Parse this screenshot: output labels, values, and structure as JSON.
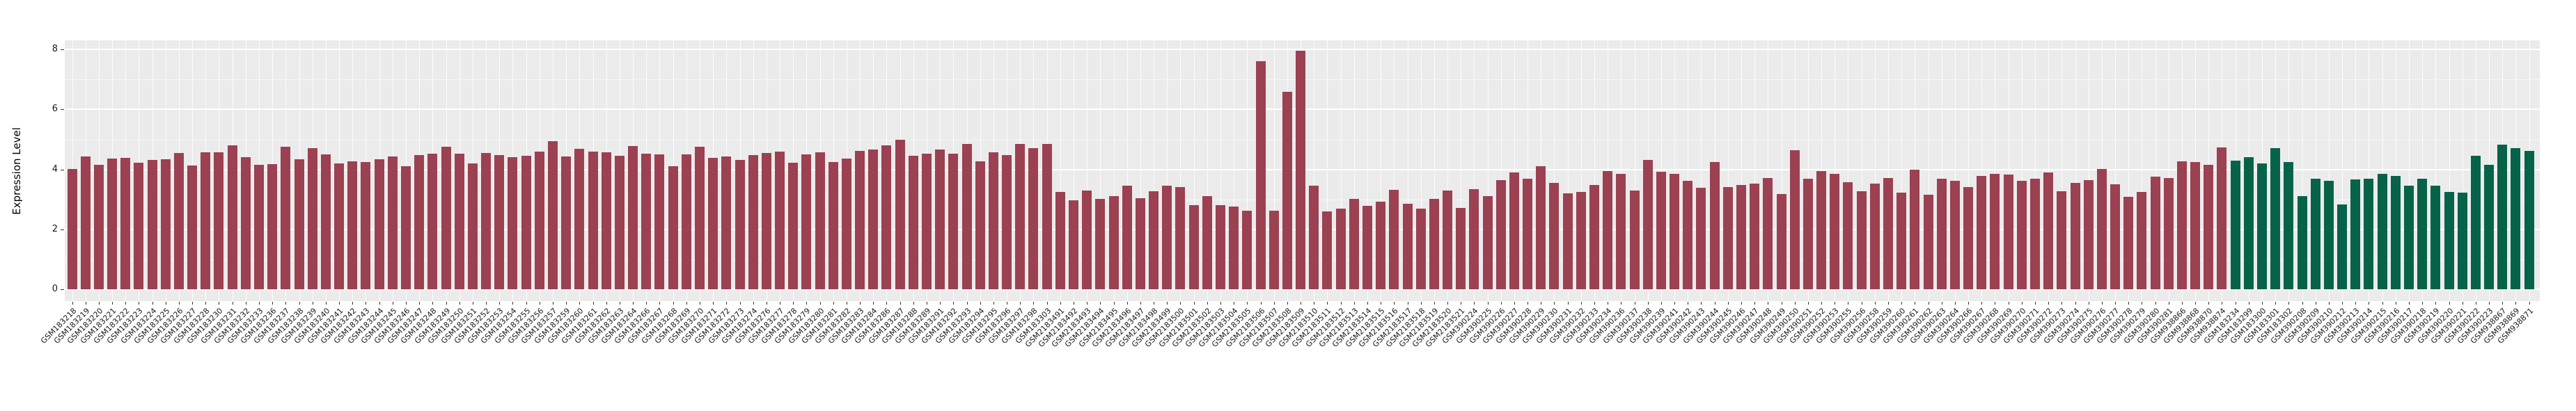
{
  "chart_data": {
    "type": "bar",
    "title": "",
    "xlabel": "",
    "ylabel": "Expression Level",
    "ylim": [
      0,
      8.3
    ],
    "yticks": [
      "0",
      "2",
      "4",
      "6",
      "8"
    ],
    "grid": "on",
    "legend": "none",
    "panel_background": "#EBEBEB",
    "gridline_color": "#FFFFFF",
    "series": [
      {
        "name": "group-red",
        "color": "#9B4152",
        "points": [
          [
            "GSM183218",
            4.02
          ],
          [
            "GSM183219",
            4.43
          ],
          [
            "GSM183220",
            4.15
          ],
          [
            "GSM183221",
            4.36
          ],
          [
            "GSM183222",
            4.39
          ],
          [
            "GSM183223",
            4.22
          ],
          [
            "GSM183224",
            4.32
          ],
          [
            "GSM183225",
            4.35
          ],
          [
            "GSM183226",
            4.55
          ],
          [
            "GSM183227",
            4.12
          ],
          [
            "GSM183228",
            4.56
          ],
          [
            "GSM183230",
            4.58
          ],
          [
            "GSM183231",
            4.81
          ],
          [
            "GSM183232",
            4.4
          ],
          [
            "GSM183233",
            4.16
          ],
          [
            "GSM183236",
            4.18
          ],
          [
            "GSM183237",
            4.75
          ],
          [
            "GSM183238",
            4.35
          ],
          [
            "GSM183239",
            4.7
          ],
          [
            "GSM183240",
            4.5
          ],
          [
            "GSM183241",
            4.2
          ],
          [
            "GSM183242",
            4.28
          ],
          [
            "GSM183243",
            4.25
          ],
          [
            "GSM183244",
            4.35
          ],
          [
            "GSM183245",
            4.42
          ],
          [
            "GSM183246",
            4.1
          ],
          [
            "GSM183247",
            4.48
          ],
          [
            "GSM183248",
            4.52
          ],
          [
            "GSM183249",
            4.76
          ],
          [
            "GSM183250",
            4.52
          ],
          [
            "GSM183251",
            4.2
          ],
          [
            "GSM183252",
            4.54
          ],
          [
            "GSM183253",
            4.48
          ],
          [
            "GSM183254",
            4.4
          ],
          [
            "GSM183255",
            4.45
          ],
          [
            "GSM183256",
            4.6
          ],
          [
            "GSM183257",
            4.95
          ],
          [
            "GSM183259",
            4.42
          ],
          [
            "GSM183260",
            4.68
          ],
          [
            "GSM183261",
            4.6
          ],
          [
            "GSM183262",
            4.58
          ],
          [
            "GSM183263",
            4.45
          ],
          [
            "GSM183264",
            4.78
          ],
          [
            "GSM183266",
            4.52
          ],
          [
            "GSM183267",
            4.5
          ],
          [
            "GSM183268",
            4.1
          ],
          [
            "GSM183269",
            4.5
          ],
          [
            "GSM183270",
            4.76
          ],
          [
            "GSM183271",
            4.38
          ],
          [
            "GSM183272",
            4.42
          ],
          [
            "GSM183273",
            4.32
          ],
          [
            "GSM183274",
            4.48
          ],
          [
            "GSM183276",
            4.54
          ],
          [
            "GSM183277",
            4.6
          ],
          [
            "GSM183278",
            4.22
          ],
          [
            "GSM183279",
            4.5
          ],
          [
            "GSM183280",
            4.58
          ],
          [
            "GSM183281",
            4.24
          ],
          [
            "GSM183282",
            4.36
          ],
          [
            "GSM183283",
            4.62
          ],
          [
            "GSM183284",
            4.66
          ],
          [
            "GSM183286",
            4.8
          ],
          [
            "GSM183287",
            5.0
          ],
          [
            "GSM183288",
            4.45
          ],
          [
            "GSM183289",
            4.52
          ],
          [
            "GSM183291",
            4.66
          ],
          [
            "GSM183292",
            4.52
          ],
          [
            "GSM183293",
            4.86
          ],
          [
            "GSM183294",
            4.28
          ],
          [
            "GSM183295",
            4.58
          ],
          [
            "GSM183296",
            4.48
          ],
          [
            "GSM183297",
            4.86
          ],
          [
            "GSM183298",
            4.72
          ],
          [
            "GSM183303",
            4.85
          ],
          [
            "GSM2183491",
            3.25
          ],
          [
            "GSM2183492",
            2.98
          ],
          [
            "GSM2183493",
            3.3
          ],
          [
            "GSM2183494",
            3.02
          ],
          [
            "GSM2183495",
            3.1
          ],
          [
            "GSM2183496",
            3.45
          ],
          [
            "GSM2183497",
            3.05
          ],
          [
            "GSM2183498",
            3.28
          ],
          [
            "GSM2183499",
            3.45
          ],
          [
            "GSM2183500",
            3.4
          ],
          [
            "GSM2183501",
            2.8
          ],
          [
            "GSM2183502",
            3.1
          ],
          [
            "GSM2183503",
            2.8
          ],
          [
            "GSM2183504",
            2.75
          ],
          [
            "GSM2183505",
            2.62
          ],
          [
            "GSM2183506",
            7.6
          ],
          [
            "GSM2183507",
            2.62
          ],
          [
            "GSM2183508",
            6.58
          ],
          [
            "GSM2183509",
            7.95
          ],
          [
            "GSM2183510",
            3.45
          ],
          [
            "GSM2183511",
            2.6
          ],
          [
            "GSM2183512",
            2.7
          ],
          [
            "GSM2183513",
            3.02
          ],
          [
            "GSM2183514",
            2.78
          ],
          [
            "GSM2183515",
            2.92
          ],
          [
            "GSM2183516",
            3.32
          ],
          [
            "GSM2183517",
            2.85
          ],
          [
            "GSM2183518",
            2.7
          ],
          [
            "GSM2183519",
            3.02
          ],
          [
            "GSM2183520",
            3.3
          ],
          [
            "GSM2183521",
            2.72
          ],
          [
            "GSM390224",
            3.35
          ],
          [
            "GSM390225",
            3.1
          ],
          [
            "GSM390226",
            3.65
          ],
          [
            "GSM390227",
            3.9
          ],
          [
            "GSM390228",
            3.7
          ],
          [
            "GSM390229",
            4.1
          ],
          [
            "GSM390230",
            3.55
          ],
          [
            "GSM390231",
            3.2
          ],
          [
            "GSM390232",
            3.25
          ],
          [
            "GSM390233",
            3.48
          ],
          [
            "GSM390234",
            3.95
          ],
          [
            "GSM390236",
            3.85
          ],
          [
            "GSM390237",
            3.3
          ],
          [
            "GSM390238",
            4.32
          ],
          [
            "GSM390239",
            3.92
          ],
          [
            "GSM390241",
            3.85
          ],
          [
            "GSM390242",
            3.62
          ],
          [
            "GSM390243",
            3.38
          ],
          [
            "GSM390244",
            4.25
          ],
          [
            "GSM390245",
            3.42
          ],
          [
            "GSM390246",
            3.48
          ],
          [
            "GSM390247",
            3.52
          ],
          [
            "GSM390248",
            3.72
          ],
          [
            "GSM390249",
            3.18
          ],
          [
            "GSM390250",
            4.65
          ],
          [
            "GSM390251",
            3.68
          ],
          [
            "GSM390252",
            3.95
          ],
          [
            "GSM390253",
            3.85
          ],
          [
            "GSM390255",
            3.58
          ],
          [
            "GSM390256",
            3.28
          ],
          [
            "GSM390258",
            3.52
          ],
          [
            "GSM390259",
            3.72
          ],
          [
            "GSM390260",
            3.22
          ],
          [
            "GSM390261",
            3.98
          ],
          [
            "GSM390262",
            3.15
          ],
          [
            "GSM390263",
            3.68
          ],
          [
            "GSM390264",
            3.62
          ],
          [
            "GSM390266",
            3.42
          ],
          [
            "GSM390267",
            3.78
          ],
          [
            "GSM390268",
            3.85
          ],
          [
            "GSM390269",
            3.82
          ],
          [
            "GSM390270",
            3.62
          ],
          [
            "GSM390271",
            3.7
          ],
          [
            "GSM390272",
            3.9
          ],
          [
            "GSM390273",
            3.28
          ],
          [
            "GSM390274",
            3.55
          ],
          [
            "GSM390275",
            3.64
          ],
          [
            "GSM390276",
            4.01
          ],
          [
            "GSM390277",
            3.5
          ],
          [
            "GSM390278",
            3.08
          ],
          [
            "GSM390279",
            3.25
          ],
          [
            "GSM390280",
            3.76
          ],
          [
            "GSM390281",
            3.71
          ],
          [
            "GSM938866",
            4.27
          ],
          [
            "GSM938868",
            4.24
          ],
          [
            "GSM938870",
            4.15
          ],
          [
            "GSM938874",
            4.74
          ]
        ]
      },
      {
        "name": "group-green",
        "color": "#066349",
        "points": [
          [
            "GSM183234",
            4.3
          ],
          [
            "GSM183299",
            4.4
          ],
          [
            "GSM183300",
            4.2
          ],
          [
            "GSM183301",
            4.72
          ],
          [
            "GSM183302",
            4.24
          ],
          [
            "GSM390208",
            3.12
          ],
          [
            "GSM390209",
            3.7
          ],
          [
            "GSM390210",
            3.62
          ],
          [
            "GSM390212",
            2.83
          ],
          [
            "GSM390213",
            3.66
          ],
          [
            "GSM390214",
            3.7
          ],
          [
            "GSM390215",
            3.85
          ],
          [
            "GSM390216",
            3.78
          ],
          [
            "GSM390217",
            3.45
          ],
          [
            "GSM390218",
            3.7
          ],
          [
            "GSM390219",
            3.45
          ],
          [
            "GSM390220",
            3.25
          ],
          [
            "GSM390221",
            3.22
          ],
          [
            "GSM390222",
            4.45
          ],
          [
            "GSM390223",
            4.15
          ],
          [
            "GSM938867",
            4.82
          ],
          [
            "GSM938869",
            4.7
          ],
          [
            "GSM938871",
            4.61
          ]
        ]
      }
    ]
  }
}
